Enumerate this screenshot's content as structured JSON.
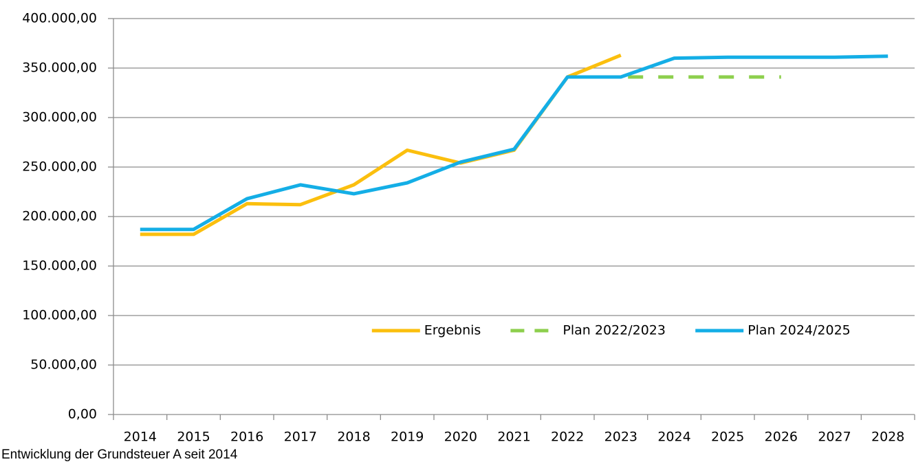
{
  "chart_data": {
    "type": "line",
    "caption": "Entwicklung der Grundsteuer A seit 2014",
    "categories": [
      "2014",
      "2015",
      "2016",
      "2017",
      "2018",
      "2019",
      "2020",
      "2021",
      "2022",
      "2023",
      "2024",
      "2025",
      "2026",
      "2027",
      "2028"
    ],
    "series": [
      {
        "name": "Ergebnis",
        "color": "#fbbf0e",
        "style": "solid",
        "values": [
          182000,
          182000,
          213000,
          212000,
          232000,
          267000,
          254000,
          267000,
          341000,
          363000,
          null,
          null,
          null,
          null,
          null
        ]
      },
      {
        "name": "Plan 2022/2023",
        "color": "#8dcf4d",
        "style": "dashed",
        "values": [
          null,
          null,
          null,
          null,
          null,
          null,
          null,
          null,
          341000,
          341000,
          341000,
          341000,
          341000,
          null,
          null
        ]
      },
      {
        "name": "Plan 2024/2025",
        "color": "#14aee6",
        "style": "solid",
        "values": [
          187000,
          187000,
          218000,
          232000,
          223000,
          234000,
          255000,
          268000,
          341000,
          341000,
          360000,
          361000,
          361000,
          361000,
          362000
        ]
      }
    ],
    "ylim": [
      0,
      400000
    ],
    "yticks": [
      {
        "value": 0,
        "label": "0,00"
      },
      {
        "value": 50000,
        "label": "50.000,00"
      },
      {
        "value": 100000,
        "label": "100.000,00"
      },
      {
        "value": 150000,
        "label": "150.000,00"
      },
      {
        "value": 200000,
        "label": "200.000,00"
      },
      {
        "value": 250000,
        "label": "250.000,00"
      },
      {
        "value": 300000,
        "label": "300.000,00"
      },
      {
        "value": 350000,
        "label": "350.000,00"
      },
      {
        "value": 400000,
        "label": "400.000,00"
      }
    ],
    "grid": true,
    "legend": "lower right"
  }
}
